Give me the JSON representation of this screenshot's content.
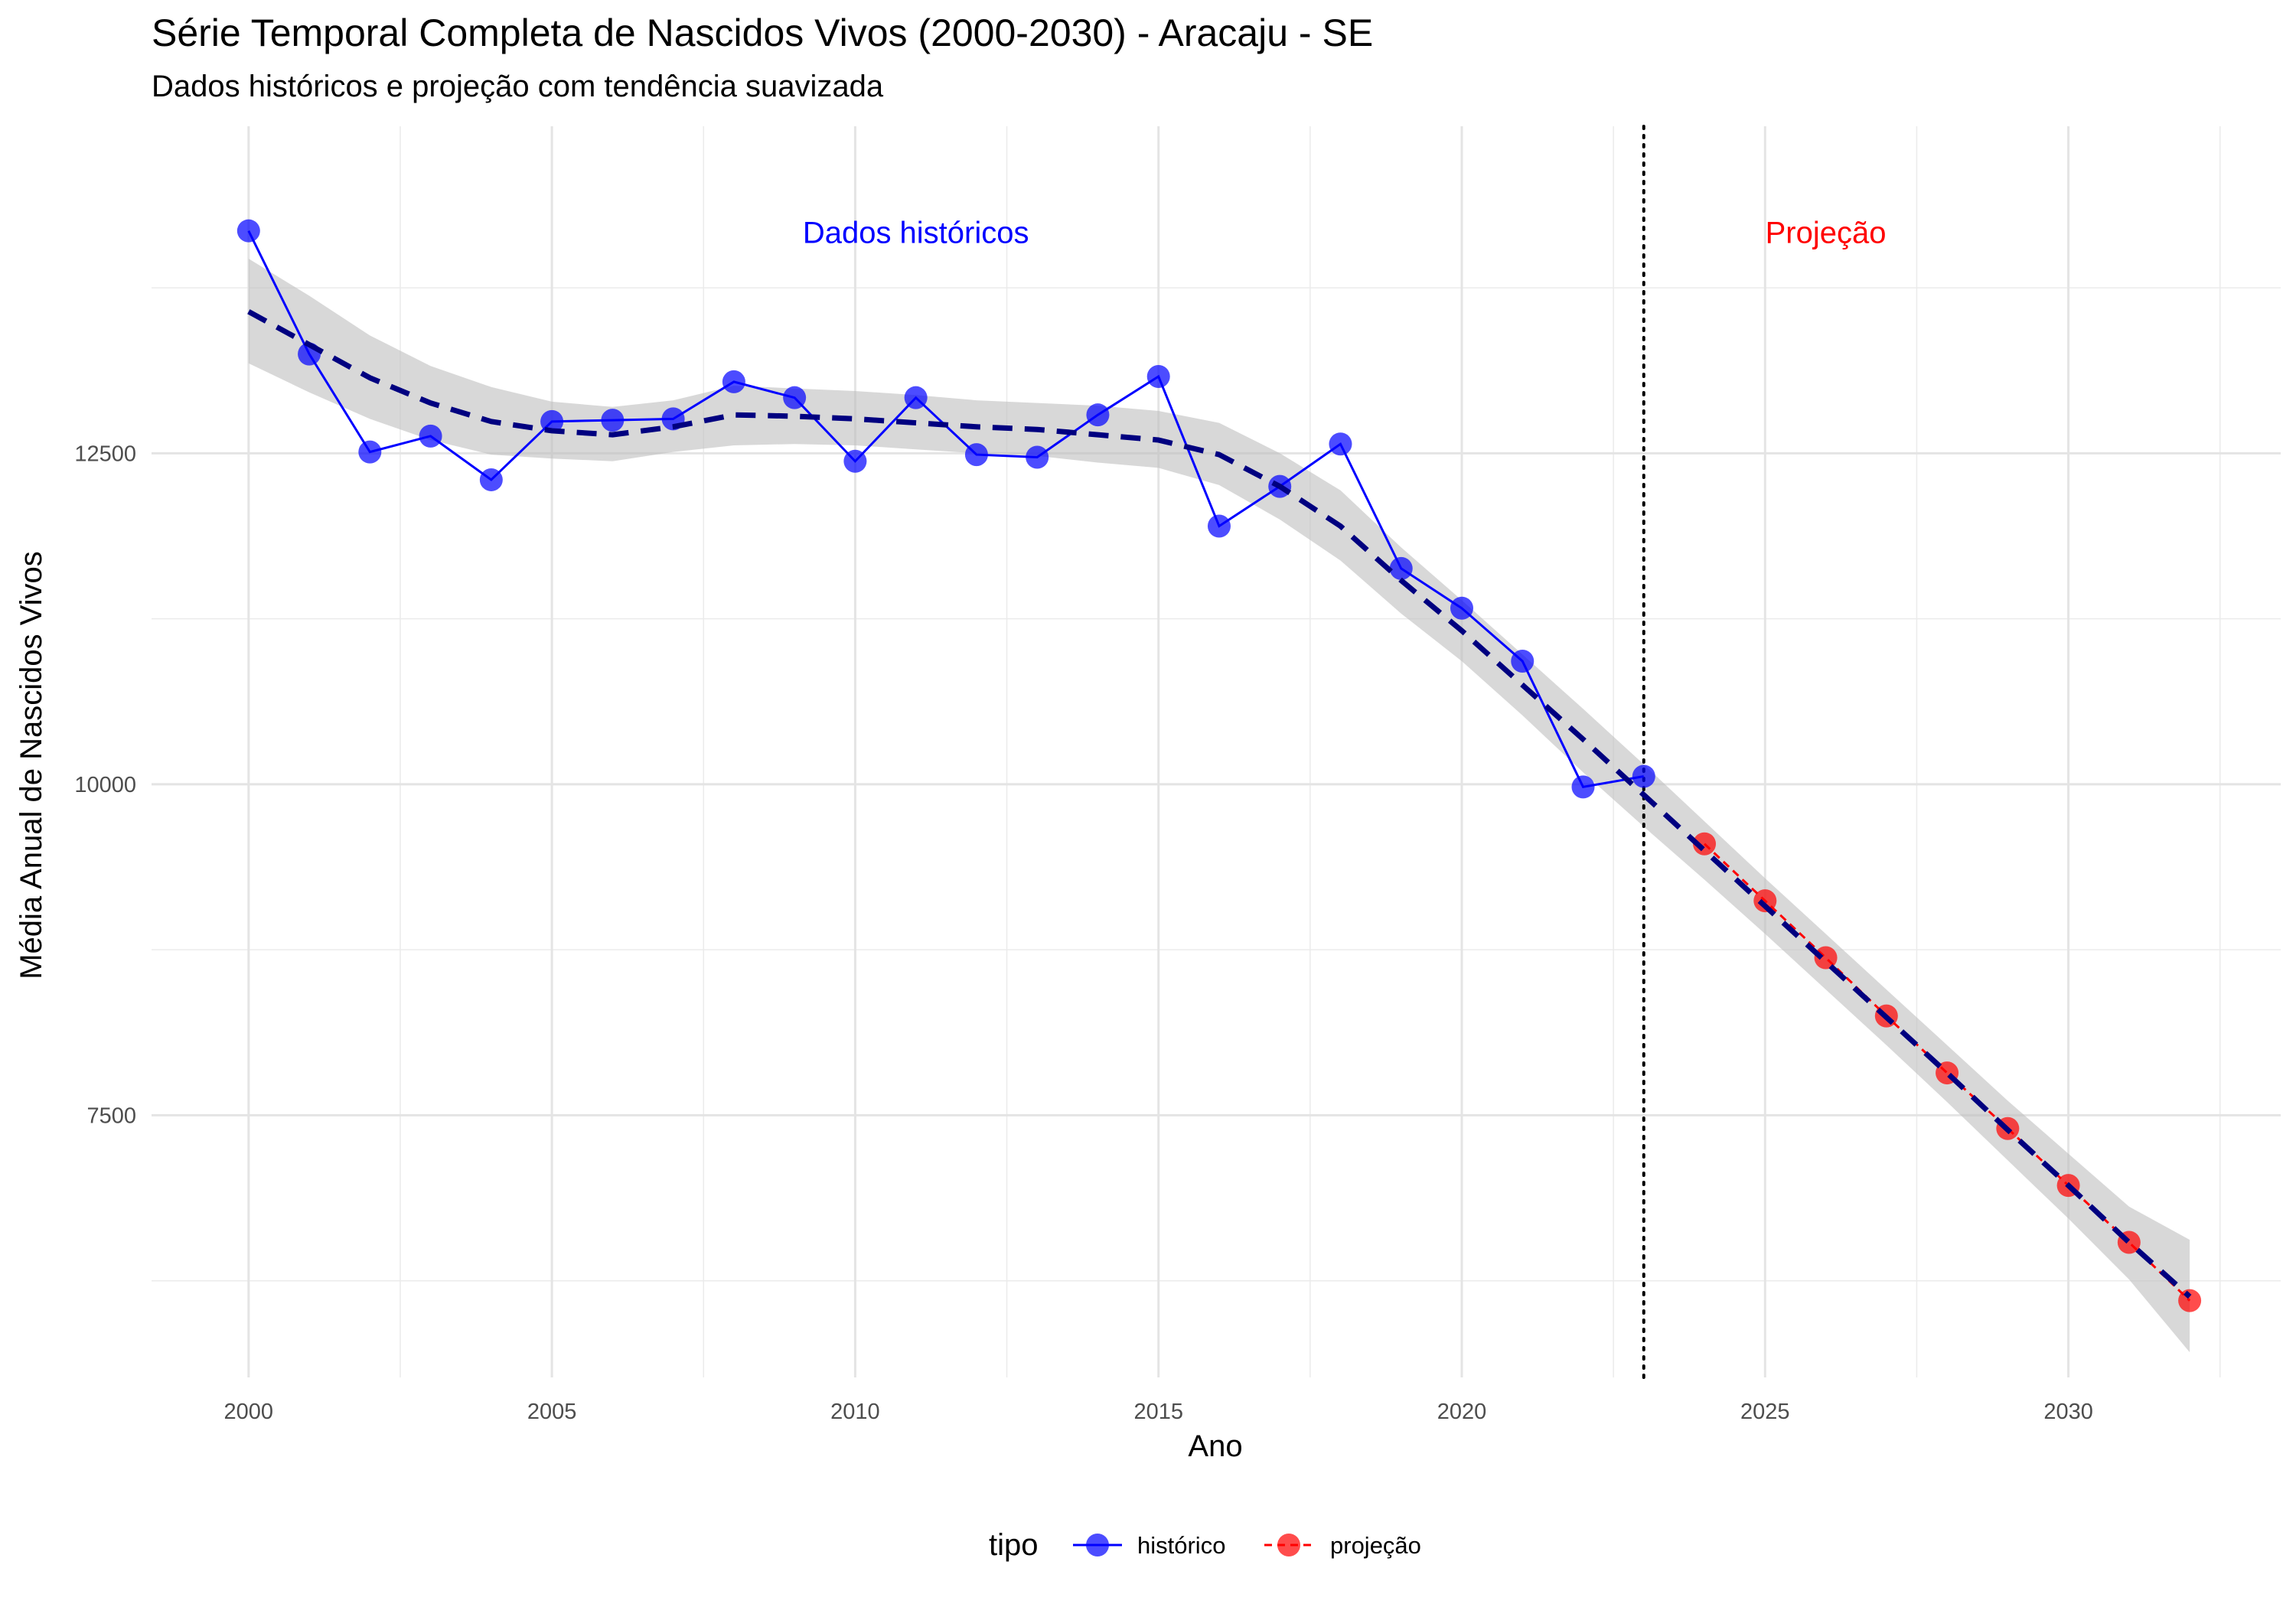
{
  "chart_data": {
    "type": "line",
    "title": "Série Temporal Completa de Nascidos Vivos (2000-2030) -  Aracaju - SE",
    "subtitle": "Dados históricos e projeção com tendência suavizada",
    "xlabel": "Ano",
    "ylabel": "Média Anual de Nascidos Vivos",
    "xlim": [
      1998.4,
      2033.5
    ],
    "ylim": [
      5520,
      14970
    ],
    "x_ticks": [
      2000,
      2005,
      2010,
      2015,
      2020,
      2025,
      2030
    ],
    "x_tick_labels": [
      "2000",
      "2005",
      "2010",
      "2015",
      "2020",
      "2025",
      "2030"
    ],
    "y_ticks": [
      7500,
      10000,
      12500
    ],
    "y_tick_labels": [
      "7500",
      "10000",
      "12500"
    ],
    "grid": true,
    "legend": {
      "title": "tipo",
      "position": "bottom",
      "entries": [
        "histórico",
        "projeção"
      ]
    },
    "vline_x": 2023,
    "annotations": [
      {
        "label": "Dados históricos",
        "x": 2011,
        "y": 14170,
        "color": "#0000ff"
      },
      {
        "label": "Projeção",
        "x": 2026,
        "y": 14170,
        "color": "#ff0000"
      }
    ],
    "series": [
      {
        "name": "histórico",
        "color": "#0000ff",
        "x": [
          2000,
          2001,
          2002,
          2003,
          2004,
          2005,
          2006,
          2007,
          2008,
          2009,
          2010,
          2011,
          2012,
          2013,
          2014,
          2015,
          2016,
          2017,
          2018,
          2019,
          2020,
          2021,
          2022,
          2023
        ],
        "values": [
          14180,
          13250,
          12510,
          12630,
          12300,
          12740,
          12750,
          12760,
          13040,
          12920,
          12440,
          12920,
          12490,
          12470,
          12790,
          13080,
          11950,
          12250,
          12570,
          11630,
          11330,
          10930,
          9980,
          10060
        ]
      },
      {
        "name": "projeção",
        "color": "#ff0000",
        "x": [
          2024,
          2025,
          2026,
          2027,
          2028,
          2029,
          2030,
          2031,
          2032
        ],
        "values": [
          9550,
          9120,
          8690,
          8250,
          7820,
          7400,
          6970,
          6540,
          6100
        ]
      }
    ],
    "trend": {
      "color": "#000080",
      "band_color": "#bebebe",
      "x": [
        2000,
        2001,
        2002,
        2003,
        2004,
        2005,
        2006,
        2007,
        2008,
        2009,
        2010,
        2011,
        2012,
        2013,
        2014,
        2015,
        2016,
        2017,
        2018,
        2019,
        2020,
        2021,
        2022,
        2023,
        2024,
        2025,
        2026,
        2027,
        2028,
        2029,
        2030,
        2031,
        2032
      ],
      "values": [
        13570,
        13320,
        13070,
        12880,
        12740,
        12670,
        12640,
        12700,
        12790,
        12780,
        12760,
        12730,
        12700,
        12680,
        12640,
        12600,
        12490,
        12250,
        11950,
        11540,
        11160,
        10750,
        10340,
        9920,
        9500,
        9080,
        8660,
        8240,
        7820,
        7390,
        6970,
        6540,
        6130
      ],
      "lower": [
        13180,
        12960,
        12760,
        12600,
        12490,
        12460,
        12440,
        12510,
        12560,
        12570,
        12560,
        12530,
        12500,
        12480,
        12430,
        12390,
        12260,
        12000,
        11690,
        11290,
        10930,
        10520,
        10090,
        9680,
        9280,
        8870,
        8450,
        8030,
        7600,
        7160,
        6720,
        6260,
        5710
      ],
      "upper": [
        13970,
        13690,
        13390,
        13160,
        13000,
        12890,
        12850,
        12900,
        13010,
        12990,
        12970,
        12940,
        12900,
        12880,
        12860,
        12820,
        12730,
        12500,
        12220,
        11790,
        11390,
        10980,
        10570,
        10150,
        9720,
        9290,
        8870,
        8450,
        8030,
        7610,
        7210,
        6810,
        6560
      ]
    }
  }
}
